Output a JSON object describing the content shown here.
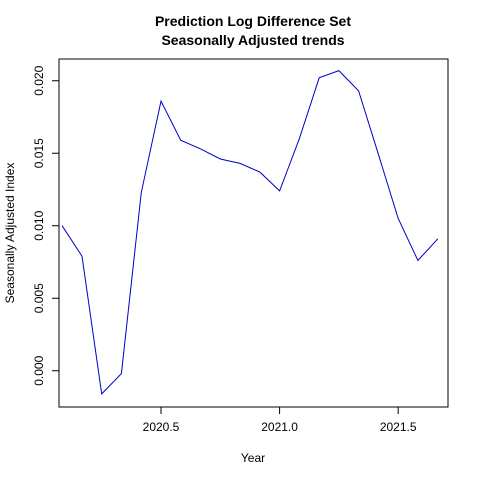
{
  "chart_data": {
    "type": "line",
    "title": "Prediction Log Difference Set",
    "subtitle": "Seasonally Adjusted trends",
    "xlabel": "Year",
    "ylabel": "Seasonally Adjusted Index",
    "xlim": [
      2020.07,
      2021.71
    ],
    "ylim": [
      -0.0025,
      0.0215
    ],
    "x_ticks": [
      {
        "value": 2020.5,
        "label": "2020.5"
      },
      {
        "value": 2021.0,
        "label": "2021.0"
      },
      {
        "value": 2021.5,
        "label": "2021.5"
      }
    ],
    "y_ticks": [
      {
        "value": 0.0,
        "label": "0.000"
      },
      {
        "value": 0.005,
        "label": "0.005"
      },
      {
        "value": 0.01,
        "label": "0.010"
      },
      {
        "value": 0.015,
        "label": "0.015"
      },
      {
        "value": 0.02,
        "label": "0.020"
      }
    ],
    "grid": false,
    "series": [
      {
        "color": "#0000cc",
        "x": [
          2020.083,
          2020.167,
          2020.25,
          2020.333,
          2020.417,
          2020.5,
          2020.583,
          2020.667,
          2020.75,
          2020.833,
          2020.917,
          2021.0,
          2021.083,
          2021.167,
          2021.25,
          2021.333,
          2021.417,
          2021.5,
          2021.583,
          2021.667
        ],
        "y": [
          0.01,
          0.0079,
          -0.0016,
          -0.0002,
          0.0123,
          0.0186,
          0.0159,
          0.0153,
          0.0146,
          0.0143,
          0.0137,
          0.0124,
          0.016,
          0.0202,
          0.0207,
          0.0193,
          0.0149,
          0.0105,
          0.0076,
          0.0091
        ]
      }
    ]
  }
}
